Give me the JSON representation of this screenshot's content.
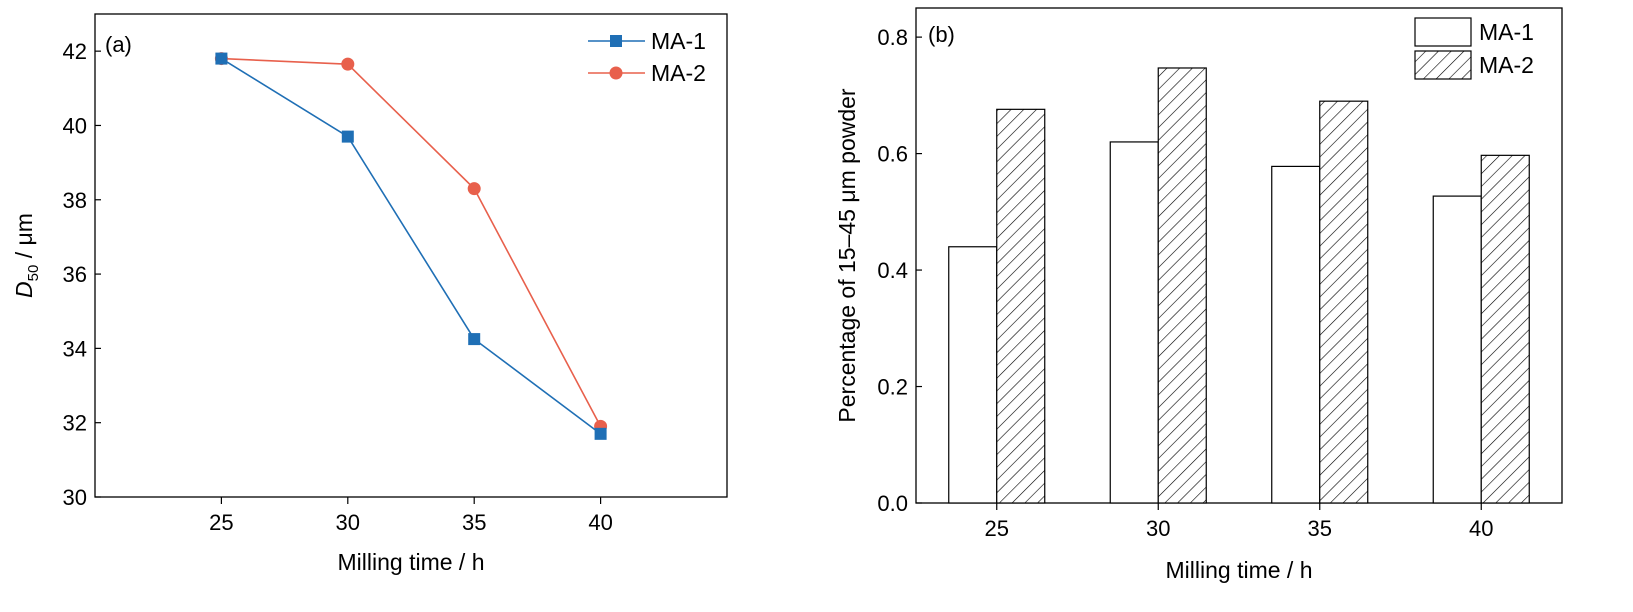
{
  "chart_data": [
    {
      "type": "line",
      "panel_label": "(a)",
      "xlabel": "Milling time / h",
      "ylabel_main": "D",
      "ylabel_sub": "50",
      "ylabel_rest": " / μm",
      "xlim": [
        20,
        45
      ],
      "ylim": [
        30,
        43
      ],
      "x_ticks": [
        25,
        30,
        35,
        40
      ],
      "y_ticks": [
        30,
        32,
        34,
        36,
        38,
        40,
        42
      ],
      "legend_position": "top-right",
      "series": [
        {
          "name": "MA-1",
          "color": "#1f6fb5",
          "marker": "square",
          "x": [
            25,
            30,
            35,
            40
          ],
          "values": [
            41.8,
            39.7,
            34.25,
            31.7
          ]
        },
        {
          "name": "MA-2",
          "color": "#e8604c",
          "marker": "circle",
          "x": [
            25,
            30,
            35,
            40
          ],
          "values": [
            41.8,
            41.65,
            38.3,
            31.9
          ]
        }
      ]
    },
    {
      "type": "bar",
      "panel_label": "(b)",
      "xlabel": "Milling time / h",
      "ylabel": "Percentage of 15–45 μm powder",
      "categories": [
        "25",
        "30",
        "35",
        "40"
      ],
      "ylim": [
        0,
        0.85
      ],
      "y_ticks": [
        "0.0",
        "0.2",
        "0.4",
        "0.6",
        "0.8"
      ],
      "legend_position": "top-right",
      "series": [
        {
          "name": "MA-1",
          "fill": "plain",
          "values": [
            0.44,
            0.62,
            0.578,
            0.527
          ]
        },
        {
          "name": "MA-2",
          "fill": "hatched",
          "values": [
            0.676,
            0.747,
            0.69,
            0.597
          ]
        }
      ]
    }
  ]
}
